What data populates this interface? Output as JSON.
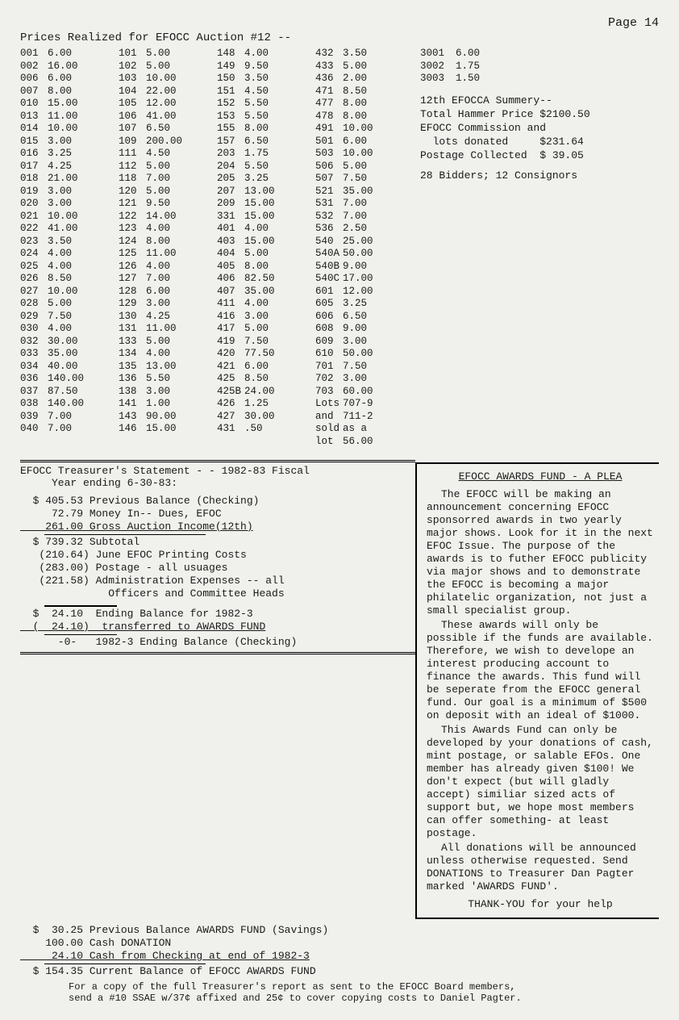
{
  "page_number": "Page 14",
  "auction_title": "Prices Realized for EFOCC Auction #12 --",
  "price_cols": [
    [
      {
        "lot": "001",
        "amt": "6.00"
      },
      {
        "lot": "002",
        "amt": "16.00"
      },
      {
        "lot": "006",
        "amt": "6.00"
      },
      {
        "lot": "007",
        "amt": "8.00"
      },
      {
        "lot": "010",
        "amt": "15.00"
      },
      {
        "lot": "013",
        "amt": "11.00"
      },
      {
        "lot": "014",
        "amt": "10.00"
      },
      {
        "lot": "015",
        "amt": "3.00"
      },
      {
        "lot": "016",
        "amt": "3.25"
      },
      {
        "lot": "017",
        "amt": "4.25"
      },
      {
        "lot": "018",
        "amt": "21.00"
      },
      {
        "lot": "019",
        "amt": "3.00"
      },
      {
        "lot": "020",
        "amt": "3.00"
      },
      {
        "lot": "021",
        "amt": "10.00"
      },
      {
        "lot": "022",
        "amt": "41.00"
      },
      {
        "lot": "023",
        "amt": "3.50"
      },
      {
        "lot": "024",
        "amt": "4.00"
      },
      {
        "lot": "025",
        "amt": "4.00"
      },
      {
        "lot": "026",
        "amt": "8.50"
      },
      {
        "lot": "027",
        "amt": "10.00"
      },
      {
        "lot": "028",
        "amt": "5.00"
      },
      {
        "lot": "029",
        "amt": "7.50"
      },
      {
        "lot": "030",
        "amt": "4.00"
      },
      {
        "lot": "032",
        "amt": "30.00"
      },
      {
        "lot": "033",
        "amt": "35.00"
      },
      {
        "lot": "034",
        "amt": "40.00"
      },
      {
        "lot": "036",
        "amt": "140.00"
      },
      {
        "lot": "037",
        "amt": "87.50"
      },
      {
        "lot": "038",
        "amt": "140.00"
      },
      {
        "lot": "039",
        "amt": "7.00"
      },
      {
        "lot": "040",
        "amt": "7.00"
      }
    ],
    [
      {
        "lot": "101",
        "amt": "5.00"
      },
      {
        "lot": "102",
        "amt": "5.00"
      },
      {
        "lot": "103",
        "amt": "10.00"
      },
      {
        "lot": "104",
        "amt": "22.00"
      },
      {
        "lot": "105",
        "amt": "12.00"
      },
      {
        "lot": "106",
        "amt": "41.00"
      },
      {
        "lot": "107",
        "amt": "6.50"
      },
      {
        "lot": "109",
        "amt": "200.00"
      },
      {
        "lot": "111",
        "amt": "4.50"
      },
      {
        "lot": "112",
        "amt": "5.00"
      },
      {
        "lot": "118",
        "amt": "7.00"
      },
      {
        "lot": "120",
        "amt": "5.00"
      },
      {
        "lot": "121",
        "amt": "9.50"
      },
      {
        "lot": "122",
        "amt": "14.00"
      },
      {
        "lot": "123",
        "amt": "4.00"
      },
      {
        "lot": "124",
        "amt": "8.00"
      },
      {
        "lot": "125",
        "amt": "11.00"
      },
      {
        "lot": "126",
        "amt": "4.00"
      },
      {
        "lot": "127",
        "amt": "7.00"
      },
      {
        "lot": "128",
        "amt": "6.00"
      },
      {
        "lot": "129",
        "amt": "3.00"
      },
      {
        "lot": "130",
        "amt": "4.25"
      },
      {
        "lot": "131",
        "amt": "11.00"
      },
      {
        "lot": "133",
        "amt": "5.00"
      },
      {
        "lot": "134",
        "amt": "4.00"
      },
      {
        "lot": "135",
        "amt": "13.00"
      },
      {
        "lot": "136",
        "amt": "5.50"
      },
      {
        "lot": "138",
        "amt": "3.00"
      },
      {
        "lot": "141",
        "amt": "1.00"
      },
      {
        "lot": "143",
        "amt": "90.00"
      },
      {
        "lot": "146",
        "amt": "15.00"
      }
    ],
    [
      {
        "lot": "148",
        "amt": "4.00"
      },
      {
        "lot": "149",
        "amt": "9.50"
      },
      {
        "lot": "150",
        "amt": "3.50"
      },
      {
        "lot": "151",
        "amt": "4.50"
      },
      {
        "lot": "152",
        "amt": "5.50"
      },
      {
        "lot": "153",
        "amt": "5.50"
      },
      {
        "lot": "155",
        "amt": "8.00"
      },
      {
        "lot": "157",
        "amt": "6.50"
      },
      {
        "lot": "203",
        "amt": "1.75"
      },
      {
        "lot": "204",
        "amt": "5.50"
      },
      {
        "lot": "205",
        "amt": "3.25"
      },
      {
        "lot": "207",
        "amt": "13.00"
      },
      {
        "lot": "209",
        "amt": "15.00"
      },
      {
        "lot": "331",
        "amt": "15.00"
      },
      {
        "lot": "401",
        "amt": "4.00"
      },
      {
        "lot": "403",
        "amt": "15.00"
      },
      {
        "lot": "404",
        "amt": "5.00"
      },
      {
        "lot": "405",
        "amt": "8.00"
      },
      {
        "lot": "406",
        "amt": "82.50"
      },
      {
        "lot": "407",
        "amt": "35.00"
      },
      {
        "lot": "411",
        "amt": "4.00"
      },
      {
        "lot": "416",
        "amt": "3.00"
      },
      {
        "lot": "417",
        "amt": "5.00"
      },
      {
        "lot": "419",
        "amt": "7.50"
      },
      {
        "lot": "420",
        "amt": "77.50"
      },
      {
        "lot": "421",
        "amt": "6.00"
      },
      {
        "lot": "425",
        "amt": "8.50"
      },
      {
        "lot": "425B",
        "amt": "24.00"
      },
      {
        "lot": "426",
        "amt": "1.25"
      },
      {
        "lot": "427",
        "amt": "30.00"
      },
      {
        "lot": "431",
        "amt": ".50"
      }
    ],
    [
      {
        "lot": "432",
        "amt": "3.50"
      },
      {
        "lot": "433",
        "amt": "5.00"
      },
      {
        "lot": "436",
        "amt": "2.00"
      },
      {
        "lot": "471",
        "amt": "8.50"
      },
      {
        "lot": "477",
        "amt": "8.00"
      },
      {
        "lot": "478",
        "amt": "8.00"
      },
      {
        "lot": "491",
        "amt": "10.00"
      },
      {
        "lot": "501",
        "amt": "6.00"
      },
      {
        "lot": "503",
        "amt": "10.00"
      },
      {
        "lot": "506",
        "amt": "5.00"
      },
      {
        "lot": "507",
        "amt": "7.50"
      },
      {
        "lot": "521",
        "amt": "35.00"
      },
      {
        "lot": "531",
        "amt": "7.00"
      },
      {
        "lot": "532",
        "amt": "7.00"
      },
      {
        "lot": "536",
        "amt": "2.50"
      },
      {
        "lot": "540",
        "amt": "25.00"
      },
      {
        "lot": "540A",
        "amt": "50.00"
      },
      {
        "lot": "540B",
        "amt": "9.00"
      },
      {
        "lot": "540C",
        "amt": "17.00"
      },
      {
        "lot": "601",
        "amt": "12.00"
      },
      {
        "lot": "605",
        "amt": "3.25"
      },
      {
        "lot": "606",
        "amt": "6.50"
      },
      {
        "lot": "608",
        "amt": "9.00"
      },
      {
        "lot": "609",
        "amt": "3.00"
      },
      {
        "lot": "610",
        "amt": "50.00"
      },
      {
        "lot": "701",
        "amt": "7.50"
      },
      {
        "lot": "702",
        "amt": "3.00"
      },
      {
        "lot": "703",
        "amt": "60.00"
      },
      {
        "lot": "Lots",
        "amt": "707-9"
      },
      {
        "lot": "and ",
        "amt": "711-2"
      },
      {
        "lot": "sold",
        "amt": " as a"
      },
      {
        "lot": "lot",
        "amt": "  56.00"
      }
    ]
  ],
  "right_prices": [
    {
      "lot": "3001",
      "amt": "6.00"
    },
    {
      "lot": "3002",
      "amt": "1.75"
    },
    {
      "lot": "3003",
      "amt": "1.50"
    }
  ],
  "summary": {
    "l1": "12th EFOCCA Summery--",
    "l2": "Total Hammer Price $2100.50",
    "l3": "EFOCC Commission and",
    "l4": "  lots donated     $231.64",
    "l5": "Postage Collected  $ 39.05",
    "l6": "28 Bidders; 12 Consignors"
  },
  "plea": {
    "title": "EFOCC AWARDS FUND - A PLEA",
    "p1": "The EFOCC will be making an announcement concerning EFOCC sponsorred awards in two yearly major shows. Look for it in the next EFOC Issue. The purpose of the awards is to futher EFOCC publicity via major shows and to demonstrate the EFOCC is becoming a major philatelic organization, not just a small specialist group.",
    "p2": "These awards will only be possible if the funds are available. Therefore, we wish to develope an interest producing account to finance the awards. This fund will be seperate from the EFOCC general fund. Our goal is a minimum of $500 on deposit with an ideal of $1000.",
    "p3": "This Awards Fund can only be developed by your donations of cash, mint postage, or salable EFOs. One member has already given $100! We don't expect (but will gladly accept) similiar sized acts of support but, we hope most members can offer something- at least postage.",
    "p4": "All donations will be announced unless otherwise requested. Send DONATIONS to  Treasurer Dan Pagter marked 'AWARDS FUND'.",
    "thanks": "THANK-YOU for your help"
  },
  "treasurer": {
    "hdr1": "EFOCC Treasurer's Statement - - 1982-83 Fiscal",
    "hdr2": "     Year ending 6-30-83:",
    "l1": "  $ 405.53 Previous Balance (Checking)",
    "l2": "     72.79 Money In-- Dues, EFOC",
    "l3": "    261.00 Gross Auction Income(12th)",
    "l4": "  $ 739.32 Subtotal",
    "l5": "   (210.64) June EFOC Printing Costs",
    "l6": "   (283.00) Postage - all usuages",
    "l7": "   (221.58) Administration Expenses -- all",
    "l8": "              Officers and Committee Heads",
    "l9": "  $  24.10  Ending Balance for 1982-3",
    "l10": "  (  24.10)  transferred to AWARDS FUND",
    "l11": "      -0-   1982-3 Ending Balance (Checking)"
  },
  "awards_fund": {
    "l1": "  $  30.25 Previous Balance AWARDS FUND (Savings)",
    "l2": "    100.00 Cash DONATION",
    "l3": "     24.10 Cash from Checking at end of 1982-3",
    "l4": "  $ 154.35 Current Balance of EFOCC AWARDS FUND"
  },
  "footnote": {
    "l1": "For a copy of the full Treasurer's report as sent to the EFOCC Board members,",
    "l2": "send a #10 SSAE w/37¢ affixed and 25¢ to cover copying costs to Daniel Pagter."
  }
}
